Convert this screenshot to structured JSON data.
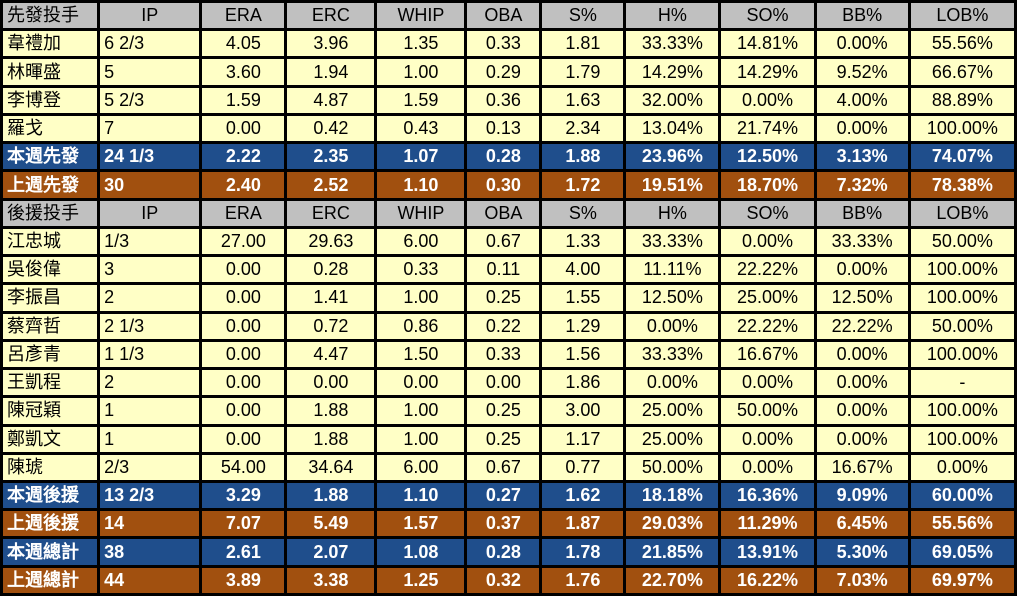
{
  "columns": [
    "IP",
    "ERA",
    "ERC",
    "WHIP",
    "OBA",
    "S%",
    "H%",
    "SO%",
    "BB%",
    "LOB%"
  ],
  "colors": {
    "header": "#c0c0c0",
    "row": "#ffffc6",
    "this_week": "#1f4e8c",
    "last_week": "#a1500f"
  },
  "sections": [
    {
      "header": "先發投手",
      "rows": [
        [
          "韋禮加",
          "6 2/3",
          "4.05",
          "3.96",
          "1.35",
          "0.33",
          "1.81",
          "33.33%",
          "14.81%",
          "0.00%",
          "55.56%"
        ],
        [
          "林暉盛",
          "5",
          "3.60",
          "1.94",
          "1.00",
          "0.29",
          "1.79",
          "14.29%",
          "14.29%",
          "9.52%",
          "66.67%"
        ],
        [
          "李博登",
          "5 2/3",
          "1.59",
          "4.87",
          "1.59",
          "0.36",
          "1.63",
          "32.00%",
          "0.00%",
          "4.00%",
          "88.89%"
        ],
        [
          "羅戈",
          "7",
          "0.00",
          "0.42",
          "0.43",
          "0.13",
          "2.34",
          "13.04%",
          "21.74%",
          "0.00%",
          "100.00%"
        ]
      ],
      "totals": [
        {
          "kind": "blue",
          "cells": [
            "本週先發",
            "24 1/3",
            "2.22",
            "2.35",
            "1.07",
            "0.28",
            "1.88",
            "23.96%",
            "12.50%",
            "3.13%",
            "74.07%"
          ]
        },
        {
          "kind": "orange",
          "cells": [
            "上週先發",
            "30",
            "2.40",
            "2.52",
            "1.10",
            "0.30",
            "1.72",
            "19.51%",
            "18.70%",
            "7.32%",
            "78.38%"
          ]
        }
      ]
    },
    {
      "header": "後援投手",
      "rows": [
        [
          "江忠城",
          "1/3",
          "27.00",
          "29.63",
          "6.00",
          "0.67",
          "1.33",
          "33.33%",
          "0.00%",
          "33.33%",
          "50.00%"
        ],
        [
          "吳俊偉",
          "3",
          "0.00",
          "0.28",
          "0.33",
          "0.11",
          "4.00",
          "11.11%",
          "22.22%",
          "0.00%",
          "100.00%"
        ],
        [
          "李振昌",
          "2",
          "0.00",
          "1.41",
          "1.00",
          "0.25",
          "1.55",
          "12.50%",
          "25.00%",
          "12.50%",
          "100.00%"
        ],
        [
          "蔡齊哲",
          "2 1/3",
          "0.00",
          "0.72",
          "0.86",
          "0.22",
          "1.29",
          "0.00%",
          "22.22%",
          "22.22%",
          "50.00%"
        ],
        [
          "呂彥青",
          "1 1/3",
          "0.00",
          "4.47",
          "1.50",
          "0.33",
          "1.56",
          "33.33%",
          "16.67%",
          "0.00%",
          "100.00%"
        ],
        [
          "王凱程",
          "2",
          "0.00",
          "0.00",
          "0.00",
          "0.00",
          "1.86",
          "0.00%",
          "0.00%",
          "0.00%",
          "-"
        ],
        [
          "陳冠穎",
          "1",
          "0.00",
          "1.88",
          "1.00",
          "0.25",
          "3.00",
          "25.00%",
          "50.00%",
          "0.00%",
          "100.00%"
        ],
        [
          "鄭凱文",
          "1",
          "0.00",
          "1.88",
          "1.00",
          "0.25",
          "1.17",
          "25.00%",
          "0.00%",
          "0.00%",
          "100.00%"
        ],
        [
          "陳琥",
          "2/3",
          "54.00",
          "34.64",
          "6.00",
          "0.67",
          "0.77",
          "50.00%",
          "0.00%",
          "16.67%",
          "0.00%"
        ]
      ],
      "totals": [
        {
          "kind": "blue",
          "cells": [
            "本週後援",
            "13 2/3",
            "3.29",
            "1.88",
            "1.10",
            "0.27",
            "1.62",
            "18.18%",
            "16.36%",
            "9.09%",
            "60.00%"
          ]
        },
        {
          "kind": "orange",
          "cells": [
            "上週後援",
            "14",
            "7.07",
            "5.49",
            "1.57",
            "0.37",
            "1.87",
            "29.03%",
            "11.29%",
            "6.45%",
            "55.56%"
          ]
        },
        {
          "kind": "blue",
          "cells": [
            "本週總計",
            "38",
            "2.61",
            "2.07",
            "1.08",
            "0.28",
            "1.78",
            "21.85%",
            "13.91%",
            "5.30%",
            "69.05%"
          ]
        },
        {
          "kind": "orange",
          "cells": [
            "上週總計",
            "44",
            "3.89",
            "3.38",
            "1.25",
            "0.32",
            "1.76",
            "22.70%",
            "16.22%",
            "7.03%",
            "69.97%"
          ]
        }
      ]
    }
  ]
}
